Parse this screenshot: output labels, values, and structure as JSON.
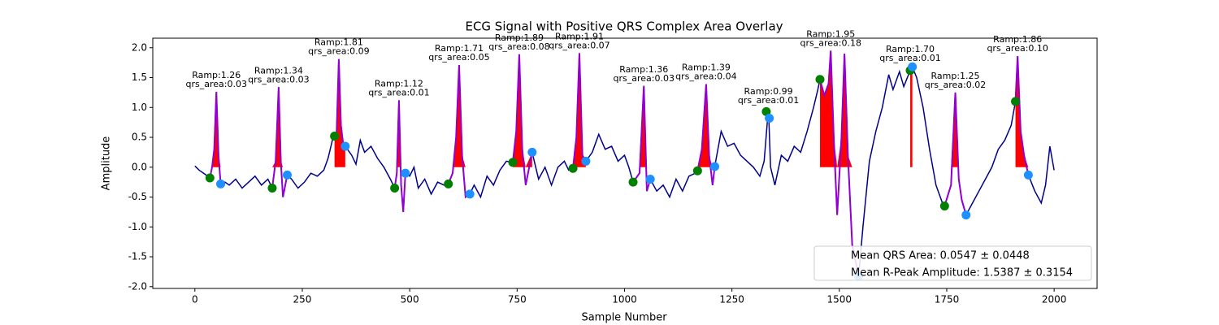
{
  "chart_data": {
    "type": "line",
    "title": "ECG Signal with Positive QRS Complex Area Overlay",
    "xlabel": "Sample Number",
    "ylabel": "Amplitude",
    "xlim": [
      -98,
      2100
    ],
    "ylim": [
      -2.03,
      2.16
    ],
    "xticks": [
      0,
      250,
      500,
      750,
      1000,
      1250,
      1500,
      1750,
      2000
    ],
    "yticks": [
      {
        "value": -2,
        "label": "-2.0"
      },
      -1.5,
      {
        "value": -1,
        "label": "-1.0"
      },
      -0.5,
      {
        "value": 0,
        "label": "0.0"
      },
      0.5,
      {
        "value": 1,
        "label": "1.0"
      },
      1.5,
      {
        "value": 2,
        "label": "2.0"
      }
    ],
    "signal": {
      "color": "#00008b",
      "x": [
        0,
        10,
        20,
        30,
        35,
        40,
        45,
        50,
        55,
        60,
        70,
        80,
        95,
        110,
        125,
        140,
        155,
        170,
        180,
        188,
        195,
        200,
        205,
        215,
        225,
        240,
        255,
        270,
        285,
        300,
        310,
        320,
        325,
        330,
        335,
        340,
        345,
        350,
        365,
        375,
        385,
        395,
        410,
        425,
        440,
        455,
        465,
        470,
        475,
        480,
        485,
        490,
        500,
        510,
        520,
        535,
        550,
        565,
        580,
        590,
        600,
        608,
        615,
        622,
        630,
        640,
        650,
        665,
        680,
        695,
        710,
        725,
        740,
        748,
        755,
        762,
        770,
        785,
        800,
        815,
        830,
        845,
        860,
        870,
        880,
        888,
        895,
        902,
        910,
        925,
        940,
        955,
        970,
        985,
        1000,
        1010,
        1020,
        1035,
        1045,
        1052,
        1060,
        1075,
        1090,
        1105,
        1120,
        1135,
        1150,
        1165,
        1170,
        1180,
        1190,
        1197,
        1205,
        1210,
        1225,
        1240,
        1255,
        1270,
        1285,
        1300,
        1315,
        1325,
        1335,
        1340,
        1350,
        1365,
        1380,
        1395,
        1410,
        1425,
        1440,
        1450,
        1455,
        1465,
        1475,
        1480,
        1487,
        1495,
        1505,
        1512,
        1520,
        1530,
        1545,
        1555,
        1570,
        1585,
        1600,
        1615,
        1625,
        1640,
        1650,
        1665,
        1670,
        1680,
        1695,
        1710,
        1725,
        1740,
        1745,
        1760,
        1770,
        1778,
        1785,
        1795,
        1810,
        1825,
        1840,
        1855,
        1870,
        1885,
        1900,
        1910,
        1915,
        1922,
        1930,
        1940,
        1955,
        1970,
        1980,
        1990,
        2000
      ],
      "values": [
        0.02,
        -0.05,
        -0.1,
        -0.15,
        -0.18,
        0.0,
        0.3,
        1.26,
        0.2,
        -0.28,
        -0.25,
        -0.3,
        -0.2,
        -0.35,
        -0.25,
        -0.15,
        -0.3,
        -0.2,
        -0.35,
        0.1,
        1.34,
        0.1,
        -0.5,
        -0.13,
        -0.2,
        -0.35,
        -0.25,
        -0.1,
        -0.15,
        -0.05,
        0.15,
        0.45,
        0.52,
        0.6,
        1.81,
        0.7,
        0.4,
        0.35,
        0.2,
        0.05,
        0.45,
        0.25,
        0.35,
        0.15,
        0.0,
        -0.2,
        -0.35,
        -0.1,
        1.12,
        -0.3,
        -0.75,
        -0.1,
        -0.15,
        0.0,
        -0.35,
        -0.2,
        -0.45,
        -0.25,
        -0.3,
        -0.28,
        -0.1,
        0.5,
        1.71,
        0.2,
        -0.5,
        -0.45,
        -0.3,
        -0.5,
        -0.15,
        -0.3,
        -0.05,
        0.1,
        0.08,
        0.6,
        1.89,
        0.3,
        -0.3,
        0.25,
        -0.2,
        0.0,
        -0.3,
        0.0,
        0.1,
        -0.05,
        -0.02,
        0.5,
        1.91,
        0.2,
        0.1,
        0.25,
        0.55,
        0.3,
        0.35,
        0.1,
        0.2,
        0.0,
        -0.25,
        -0.1,
        1.36,
        -0.4,
        -0.2,
        -0.4,
        -0.3,
        -0.5,
        -0.2,
        -0.4,
        -0.15,
        -0.1,
        -0.06,
        0.3,
        1.39,
        0.2,
        -0.3,
        0.01,
        0.6,
        0.35,
        0.4,
        0.2,
        0.1,
        0.0,
        -0.15,
        0.1,
        0.99,
        0.0,
        -0.3,
        0.2,
        0.1,
        0.35,
        0.25,
        0.6,
        1.0,
        1.3,
        1.47,
        1.2,
        1.4,
        1.95,
        0.5,
        -0.8,
        0.5,
        1.9,
        0.2,
        -1.3,
        -1.82,
        -1.0,
        0.1,
        0.6,
        1.0,
        1.55,
        1.3,
        1.6,
        1.35,
        1.62,
        1.68,
        1.5,
        1.0,
        0.3,
        -0.3,
        -0.6,
        -0.65,
        -0.3,
        1.25,
        -0.2,
        -0.55,
        -0.8,
        -0.6,
        -0.4,
        -0.2,
        0.0,
        0.3,
        0.45,
        0.7,
        1.1,
        1.86,
        0.6,
        0.2,
        -0.13,
        -0.4,
        -0.6,
        -0.3,
        0.35,
        -0.05
      ]
    },
    "qrs_color": "#9400d3",
    "area_color": "#ff0000",
    "r_peaks": {
      "x": [
        50,
        195,
        335,
        475,
        615,
        755,
        895,
        1045,
        1190,
        1335,
        1480,
        1665,
        1770,
        1915
      ],
      "values": [
        1.26,
        1.34,
        1.81,
        1.12,
        1.71,
        1.89,
        1.91,
        1.36,
        1.39,
        0.99,
        1.95,
        1.7,
        1.25,
        1.86
      ],
      "value_labels": [
        "Ramp:1.26",
        "Ramp:1.34",
        "Ramp:1.81",
        "Ramp:1.12",
        "Ramp:1.71",
        "Ramp:1.89",
        "Ramp:1.91",
        "Ramp:1.36",
        "Ramp:1.39",
        "Ramp:0.99",
        "Ramp:1.95",
        "Ramp:1.70",
        "Ramp:1.25",
        "Ramp:1.86"
      ],
      "qrs_area": [
        0.03,
        0.03,
        0.09,
        0.01,
        0.05,
        0.08,
        0.07,
        0.03,
        0.04,
        0.01,
        0.18,
        0.01,
        0.02,
        0.1
      ],
      "qrs_area_labels": [
        "qrs_area:0.03",
        "qrs_area:0.03",
        "qrs_area:0.09",
        "qrs_area:0.01",
        "qrs_area:0.05",
        "qrs_area:0.08",
        "qrs_area:0.07",
        "qrs_area:0.03",
        "qrs_area:0.04",
        "qrs_area:0.01",
        "qrs_area:0.18",
        "qrs_area:0.01",
        "qrs_area:0.02",
        "qrs_area:0.10"
      ]
    },
    "onsets": {
      "color": "#008000",
      "x": [
        35,
        180,
        325,
        465,
        590,
        740,
        880,
        1020,
        1170,
        1330,
        1455,
        1665,
        1745,
        1910
      ],
      "values": [
        -0.18,
        -0.35,
        0.52,
        -0.35,
        -0.28,
        0.08,
        -0.02,
        -0.25,
        -0.06,
        0.93,
        1.47,
        1.62,
        -0.65,
        1.1
      ]
    },
    "offsets": {
      "color": "#1e90ff",
      "x": [
        60,
        215,
        350,
        490,
        640,
        785,
        910,
        1060,
        1210,
        1337,
        1545,
        1670,
        1795,
        1940
      ],
      "values": [
        -0.28,
        -0.13,
        0.35,
        -0.1,
        -0.45,
        0.25,
        0.1,
        -0.2,
        0.01,
        0.82,
        -1.82,
        1.68,
        -0.8,
        -0.13
      ]
    },
    "legend": [
      "Mean QRS Area: 0.0547 ± 0.0448",
      "Mean R-Peak Amplitude: 1.5387 ± 0.3154"
    ],
    "legend_position": "lower right"
  }
}
